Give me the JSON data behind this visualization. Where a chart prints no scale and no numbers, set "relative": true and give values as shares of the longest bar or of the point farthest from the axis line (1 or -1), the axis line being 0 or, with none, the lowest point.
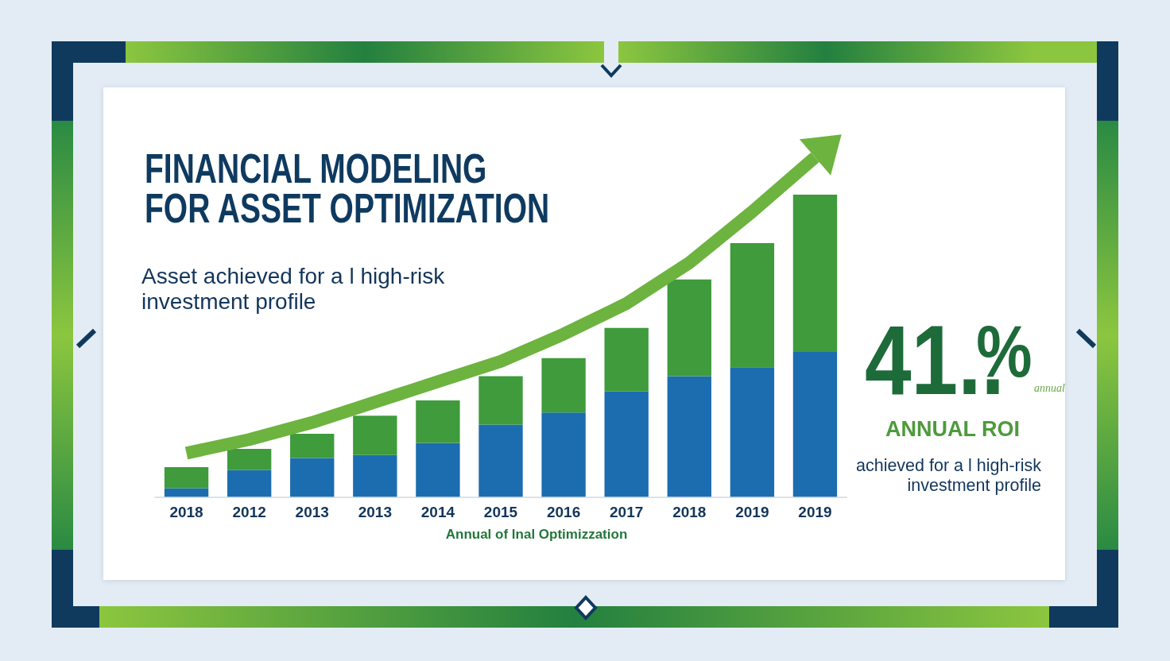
{
  "chart_data": [
    {
      "type": "bar",
      "title": "FINANCIAL MODELING FOR ASSET OPTIMIZATION",
      "subtitle": "Asset achieved for a l high-risk investment profile",
      "xlabel": "Annual of lnal Optimizzation",
      "categories": [
        "2018",
        "2012",
        "2013",
        "2013",
        "2014",
        "2015",
        "2016",
        "2017",
        "2018",
        "2019",
        "2019"
      ],
      "stacked": true,
      "relative": true,
      "series": [
        {
          "color": "#1b6db0",
          "values": [
            0.03,
            0.09,
            0.13,
            0.14,
            0.18,
            0.24,
            0.28,
            0.35,
            0.4,
            0.43,
            0.48
          ]
        },
        {
          "color": "#3f9b3c",
          "values": [
            0.07,
            0.07,
            0.08,
            0.13,
            0.14,
            0.16,
            0.18,
            0.21,
            0.32,
            0.41,
            0.52
          ]
        }
      ],
      "annotations": [
        "41..$^{%}$",
        "annual",
        "ANNUAL ROI",
        "achieved for a l high-risk investment profile"
      ]
    },
    {
      "type": "line",
      "categories": [
        "2018",
        "2012",
        "2013",
        "2013",
        "2014",
        "2015",
        "2016",
        "2017",
        "2018",
        "2019",
        "2019"
      ],
      "relative": true,
      "tick_labels": false,
      "series": [
        {
          "color": "#6db33f",
          "values": [
            0.13,
            0.17,
            0.22,
            0.28,
            0.34,
            0.4,
            0.48,
            0.57,
            0.69,
            0.84,
            1.0
          ]
        }
      ]
    }
  ]
}
